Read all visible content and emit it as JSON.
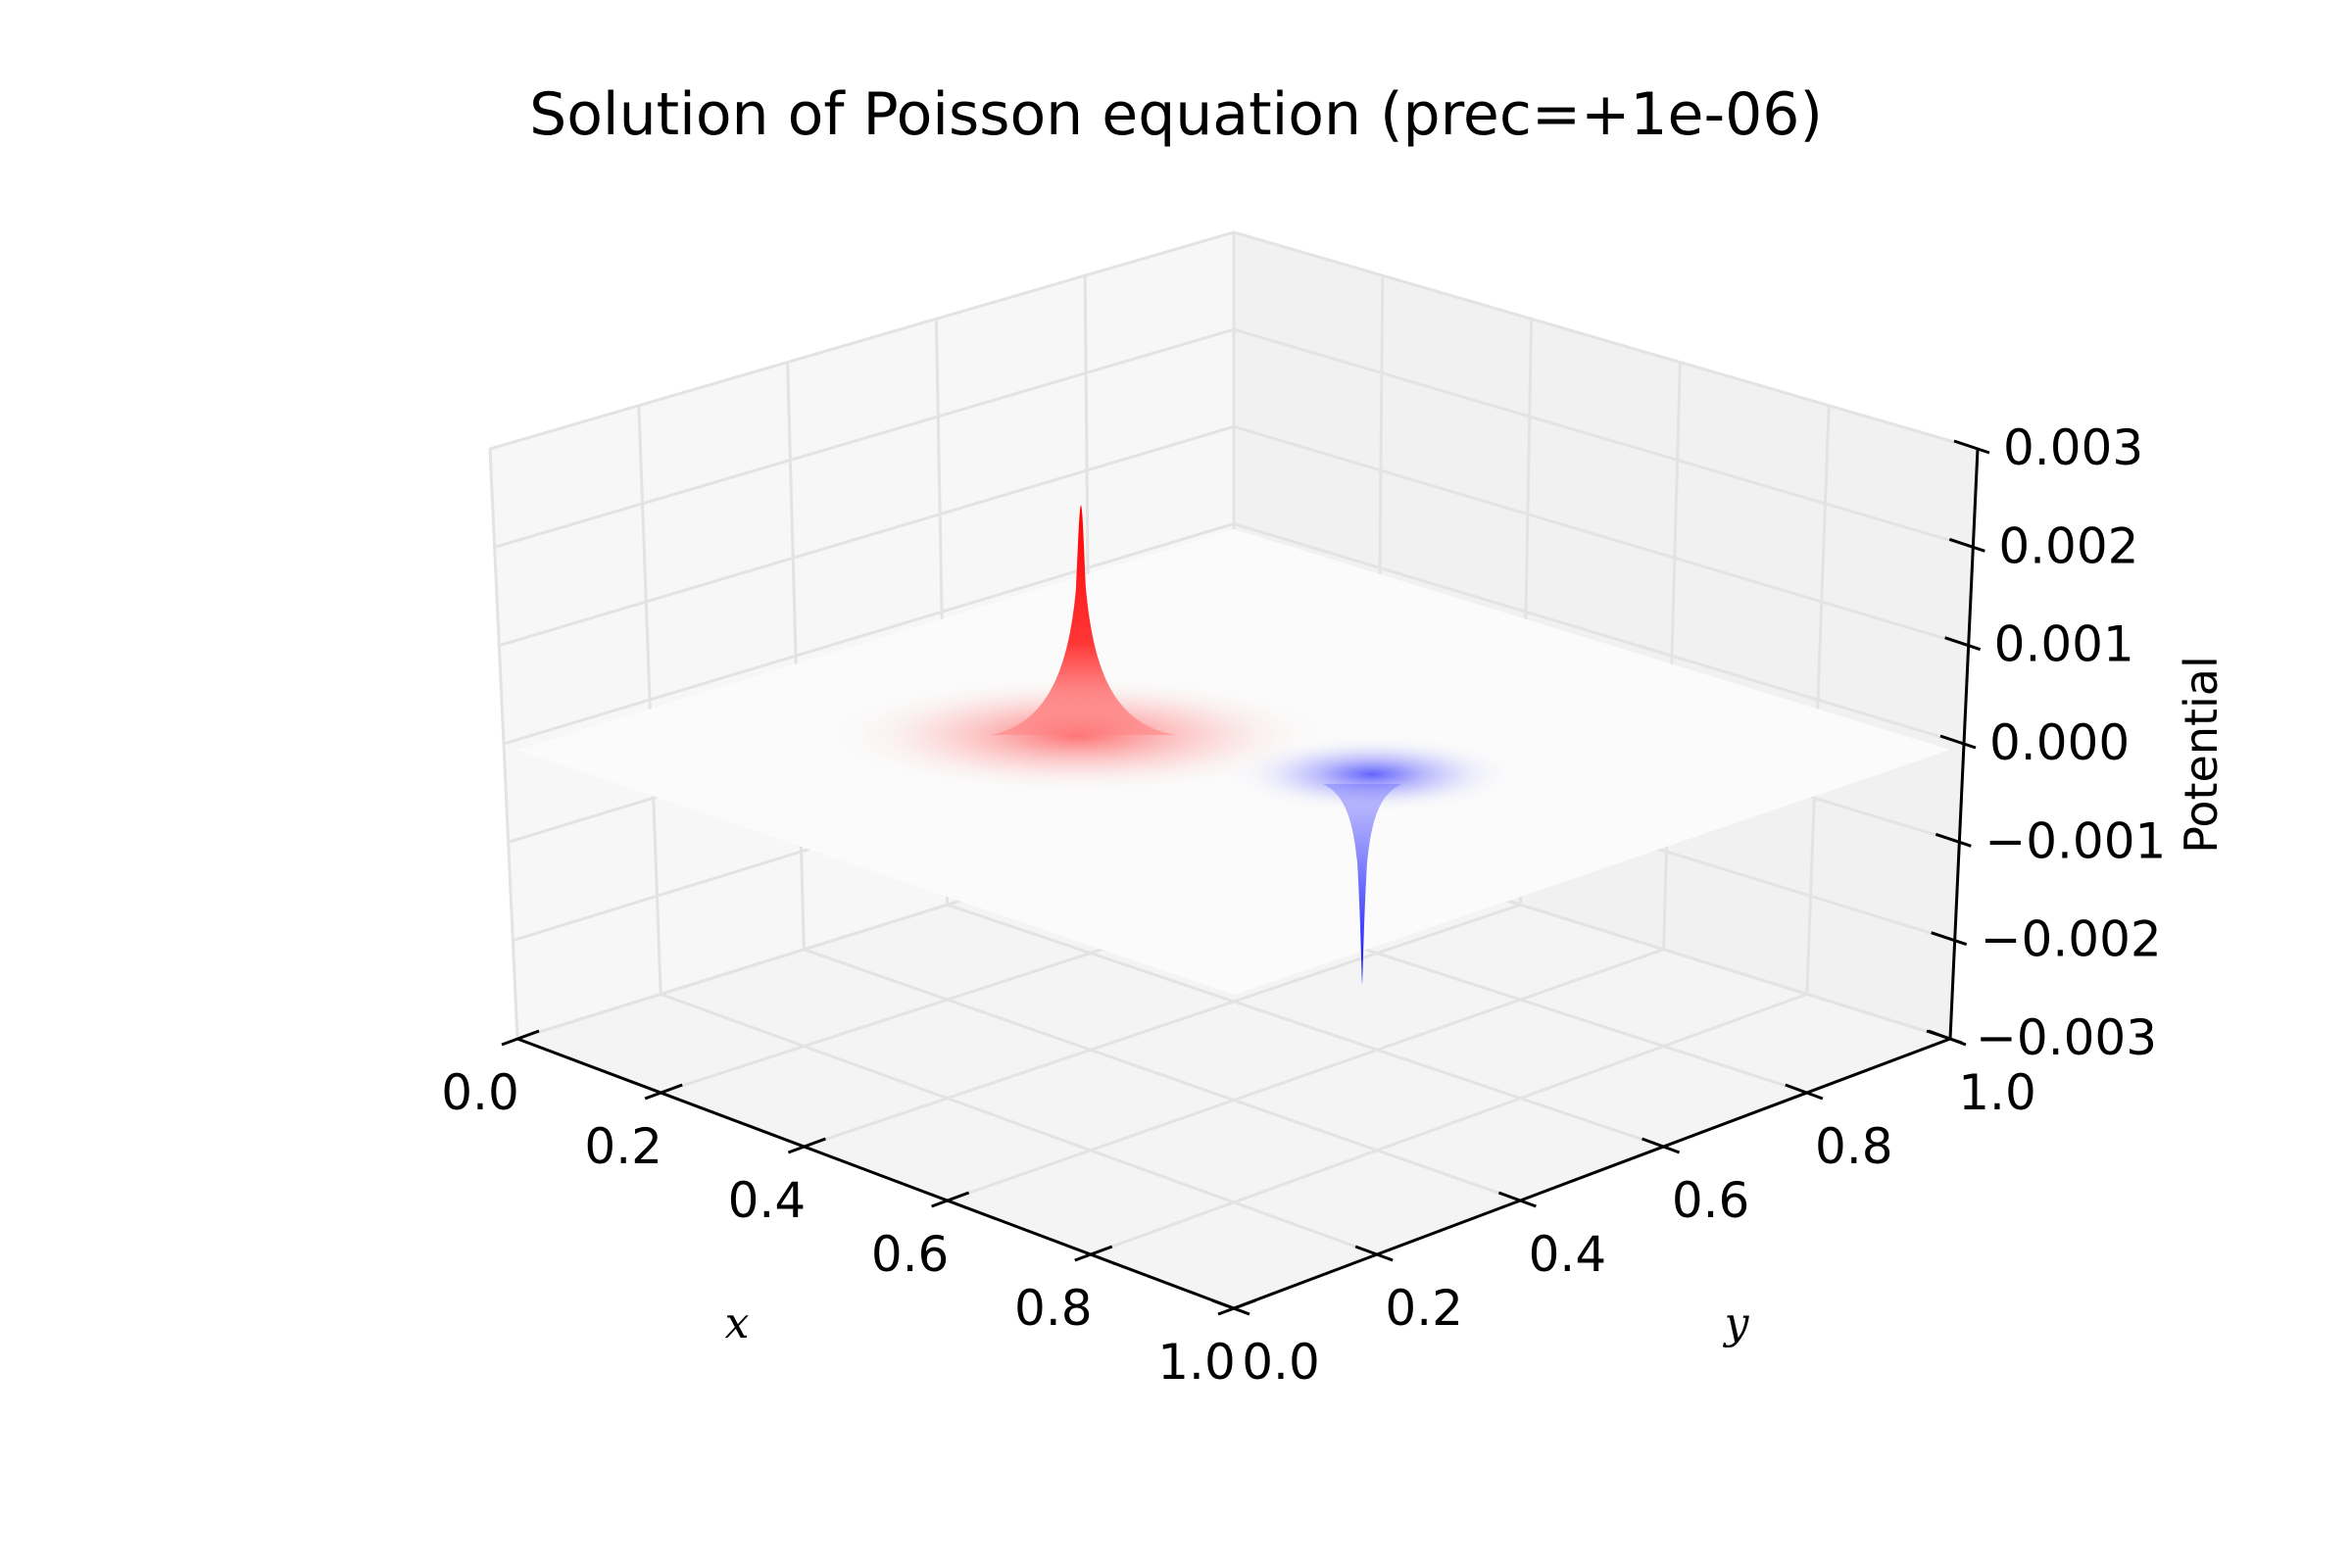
{
  "chart_data": {
    "type": "surface3d",
    "title": "Solution of Poisson equation (prec=+1e-06)",
    "xlabel": "x",
    "ylabel": "y",
    "zlabel": "Potential",
    "xlim": [
      0.0,
      1.0
    ],
    "ylim": [
      0.0,
      1.0
    ],
    "zlim": [
      -0.003,
      0.003
    ],
    "x_ticks": [
      "0.0",
      "0.2",
      "0.4",
      "0.6",
      "0.8",
      "1.0"
    ],
    "y_ticks": [
      "0.0",
      "0.2",
      "0.4",
      "0.6",
      "0.8",
      "1.0"
    ],
    "z_ticks": [
      "−0.003",
      "−0.002",
      "−0.001",
      "0.000",
      "0.001",
      "0.002",
      "0.003"
    ],
    "grid": true,
    "peaks": [
      {
        "sign": "positive",
        "color": "#ff0000",
        "x": 0.25,
        "y": 0.5,
        "value": 0.0027
      },
      {
        "sign": "negative",
        "color": "#0000ff",
        "x": 0.75,
        "y": 0.5,
        "value": -0.0025
      }
    ],
    "baseline_value": 0.0
  }
}
